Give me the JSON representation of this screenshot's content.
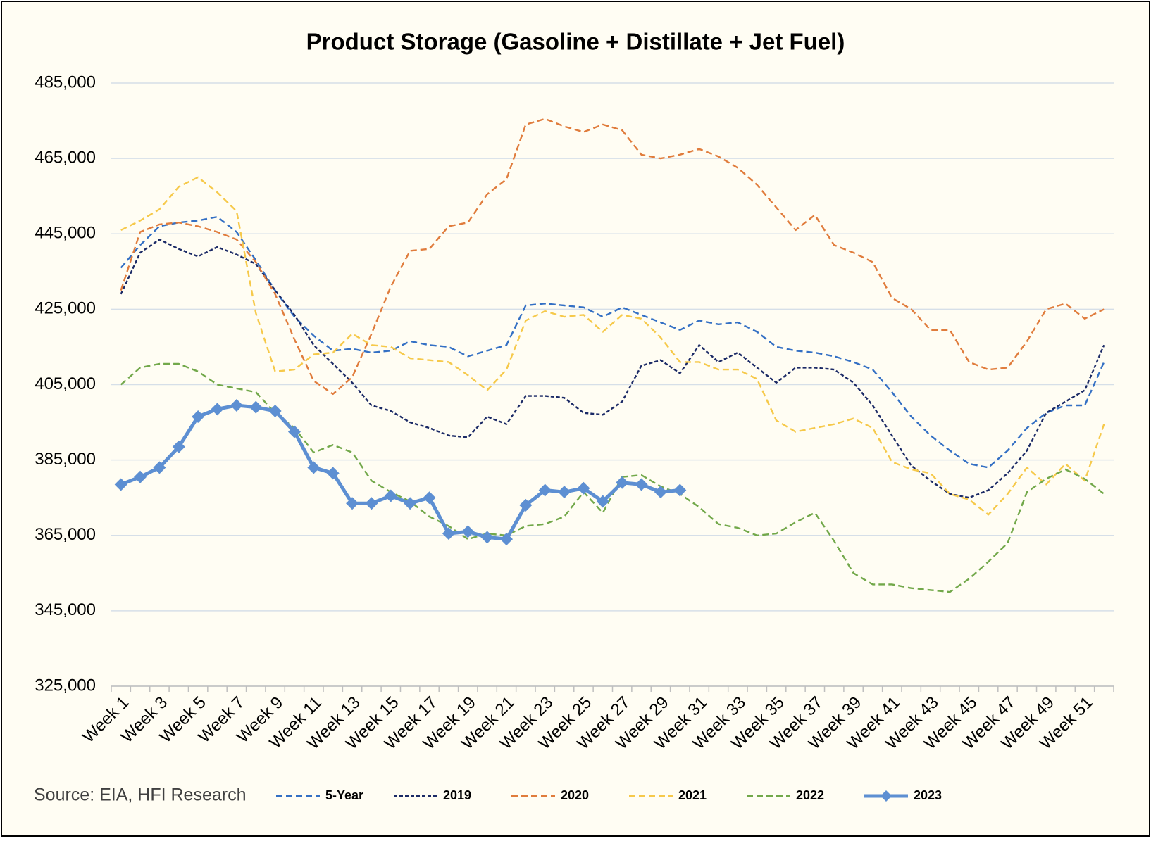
{
  "chart_data": {
    "type": "line",
    "title": "Product Storage (Gasoline + Distillate + Jet Fuel)",
    "source": "Source: EIA, HFI Research",
    "categories": [
      "Week 1",
      null,
      "Week 3",
      null,
      "Week 5",
      null,
      "Week 7",
      null,
      "Week 9",
      null,
      "Week 11",
      null,
      "Week 13",
      null,
      "Week 15",
      null,
      "Week 17",
      null,
      "Week 19",
      null,
      "Week 21",
      null,
      "Week 23",
      null,
      "Week 25",
      null,
      "Week 27",
      null,
      "Week 29",
      null,
      "Week 31",
      null,
      "Week 33",
      null,
      "Week 35",
      null,
      "Week 37",
      null,
      "Week 39",
      null,
      "Week 41",
      null,
      "Week 43",
      null,
      "Week 45",
      null,
      "Week 47",
      null,
      "Week 49",
      null,
      "Week 51",
      null
    ],
    "ylim": [
      325000,
      485000
    ],
    "yticks": [
      {
        "value": 325000,
        "label": "325,000"
      },
      {
        "value": 345000,
        "label": "345,000"
      },
      {
        "value": 365000,
        "label": "365,000"
      },
      {
        "value": 385000,
        "label": "385,000"
      },
      {
        "value": 405000,
        "label": "405,000"
      },
      {
        "value": 425000,
        "label": "425,000"
      },
      {
        "value": 445000,
        "label": "445,000"
      },
      {
        "value": 465000,
        "label": "465,000"
      },
      {
        "value": 485000,
        "label": "485,000"
      }
    ],
    "grid": true,
    "legend": "bottom",
    "series": [
      {
        "name": "5-Year",
        "color": "#3470c4",
        "style": "dashed",
        "values": [
          436000,
          442000,
          447000,
          448000,
          448500,
          449500,
          445500,
          438000,
          430000,
          423000,
          418000,
          414000,
          414500,
          413500,
          414000,
          416500,
          415500,
          415000,
          412500,
          414000,
          415500,
          426000,
          426500,
          426000,
          425500,
          423000,
          425500,
          423500,
          421500,
          419500,
          422000,
          421000,
          421500,
          419000,
          415000,
          414000,
          413500,
          412500,
          411000,
          409000,
          403000,
          396500,
          391500,
          387500,
          384000,
          383000,
          387500,
          393500,
          397500,
          399500,
          399500,
          411000
        ]
      },
      {
        "name": "2019",
        "color": "#1b2a66",
        "style": "dotted",
        "values": [
          429000,
          440000,
          443500,
          441000,
          439000,
          441500,
          439500,
          437000,
          430000,
          423500,
          415500,
          410500,
          405500,
          399500,
          398000,
          395000,
          393500,
          391500,
          391000,
          396500,
          394500,
          402000,
          402000,
          401500,
          397500,
          397000,
          400500,
          410000,
          411500,
          408000,
          415500,
          411000,
          413500,
          409500,
          405500,
          409500,
          409500,
          409000,
          405500,
          399500,
          391500,
          383500,
          379500,
          376000,
          375000,
          377000,
          381500,
          387500,
          397500,
          400500,
          403500,
          415500
        ]
      },
      {
        "name": "2020",
        "color": "#e07c3c",
        "style": "dashed",
        "values": [
          430000,
          445500,
          447500,
          448000,
          447000,
          445500,
          443500,
          437500,
          429000,
          417000,
          406000,
          402500,
          407000,
          418500,
          431000,
          440500,
          441000,
          447000,
          448000,
          455500,
          459500,
          474000,
          475500,
          473500,
          472000,
          474000,
          472500,
          466000,
          465000,
          466000,
          467500,
          465500,
          462500,
          458000,
          452000,
          446000,
          450000,
          442000,
          440000,
          437500,
          428000,
          425000,
          419500,
          419500,
          411000,
          409000,
          409500,
          416500,
          425000,
          426500,
          422500,
          425000
        ]
      },
      {
        "name": "2021",
        "color": "#f6c94a",
        "style": "dashed",
        "values": [
          446000,
          448500,
          451500,
          457500,
          460000,
          456000,
          451000,
          424000,
          408500,
          409000,
          413000,
          413500,
          418500,
          415500,
          415000,
          412000,
          411500,
          411000,
          407500,
          403500,
          409000,
          422000,
          424500,
          423000,
          423500,
          419000,
          423500,
          422500,
          417500,
          411000,
          411000,
          409000,
          409000,
          406500,
          395500,
          392500,
          393500,
          394500,
          396000,
          393500,
          384500,
          382500,
          381500,
          376000,
          374500,
          370500,
          376000,
          383000,
          378500,
          384000,
          379500,
          394500
        ]
      },
      {
        "name": "2022",
        "color": "#72a84a",
        "style": "dashed",
        "values": [
          405000,
          409500,
          410500,
          410500,
          408500,
          405000,
          404000,
          403000,
          397500,
          393500,
          387000,
          389000,
          387000,
          379500,
          376500,
          374000,
          370000,
          367500,
          364000,
          365500,
          365000,
          367500,
          368000,
          370000,
          376500,
          371000,
          380500,
          381000,
          378000,
          376000,
          372500,
          368000,
          367000,
          365000,
          365500,
          368500,
          371000,
          363500,
          355000,
          352000,
          352000,
          351000,
          350500,
          350000,
          353500,
          358000,
          363000,
          376500,
          380000,
          382500,
          380000,
          376000
        ]
      },
      {
        "name": "2023",
        "color": "#5d8fd2",
        "style": "solid",
        "marker": "diamond",
        "values": [
          378500,
          380500,
          383000,
          388500,
          396500,
          398500,
          399500,
          399000,
          398000,
          392500,
          383000,
          381500,
          373500,
          373500,
          375500,
          373500,
          375000,
          365500,
          366000,
          364500,
          364000,
          373000,
          377000,
          376500,
          377500,
          374000,
          379000,
          378500,
          376500,
          377000,
          null,
          null,
          null,
          null,
          null,
          null,
          null,
          null,
          null,
          null,
          null,
          null,
          null,
          null,
          null,
          null,
          null,
          null,
          null,
          null,
          null,
          null
        ]
      }
    ]
  }
}
